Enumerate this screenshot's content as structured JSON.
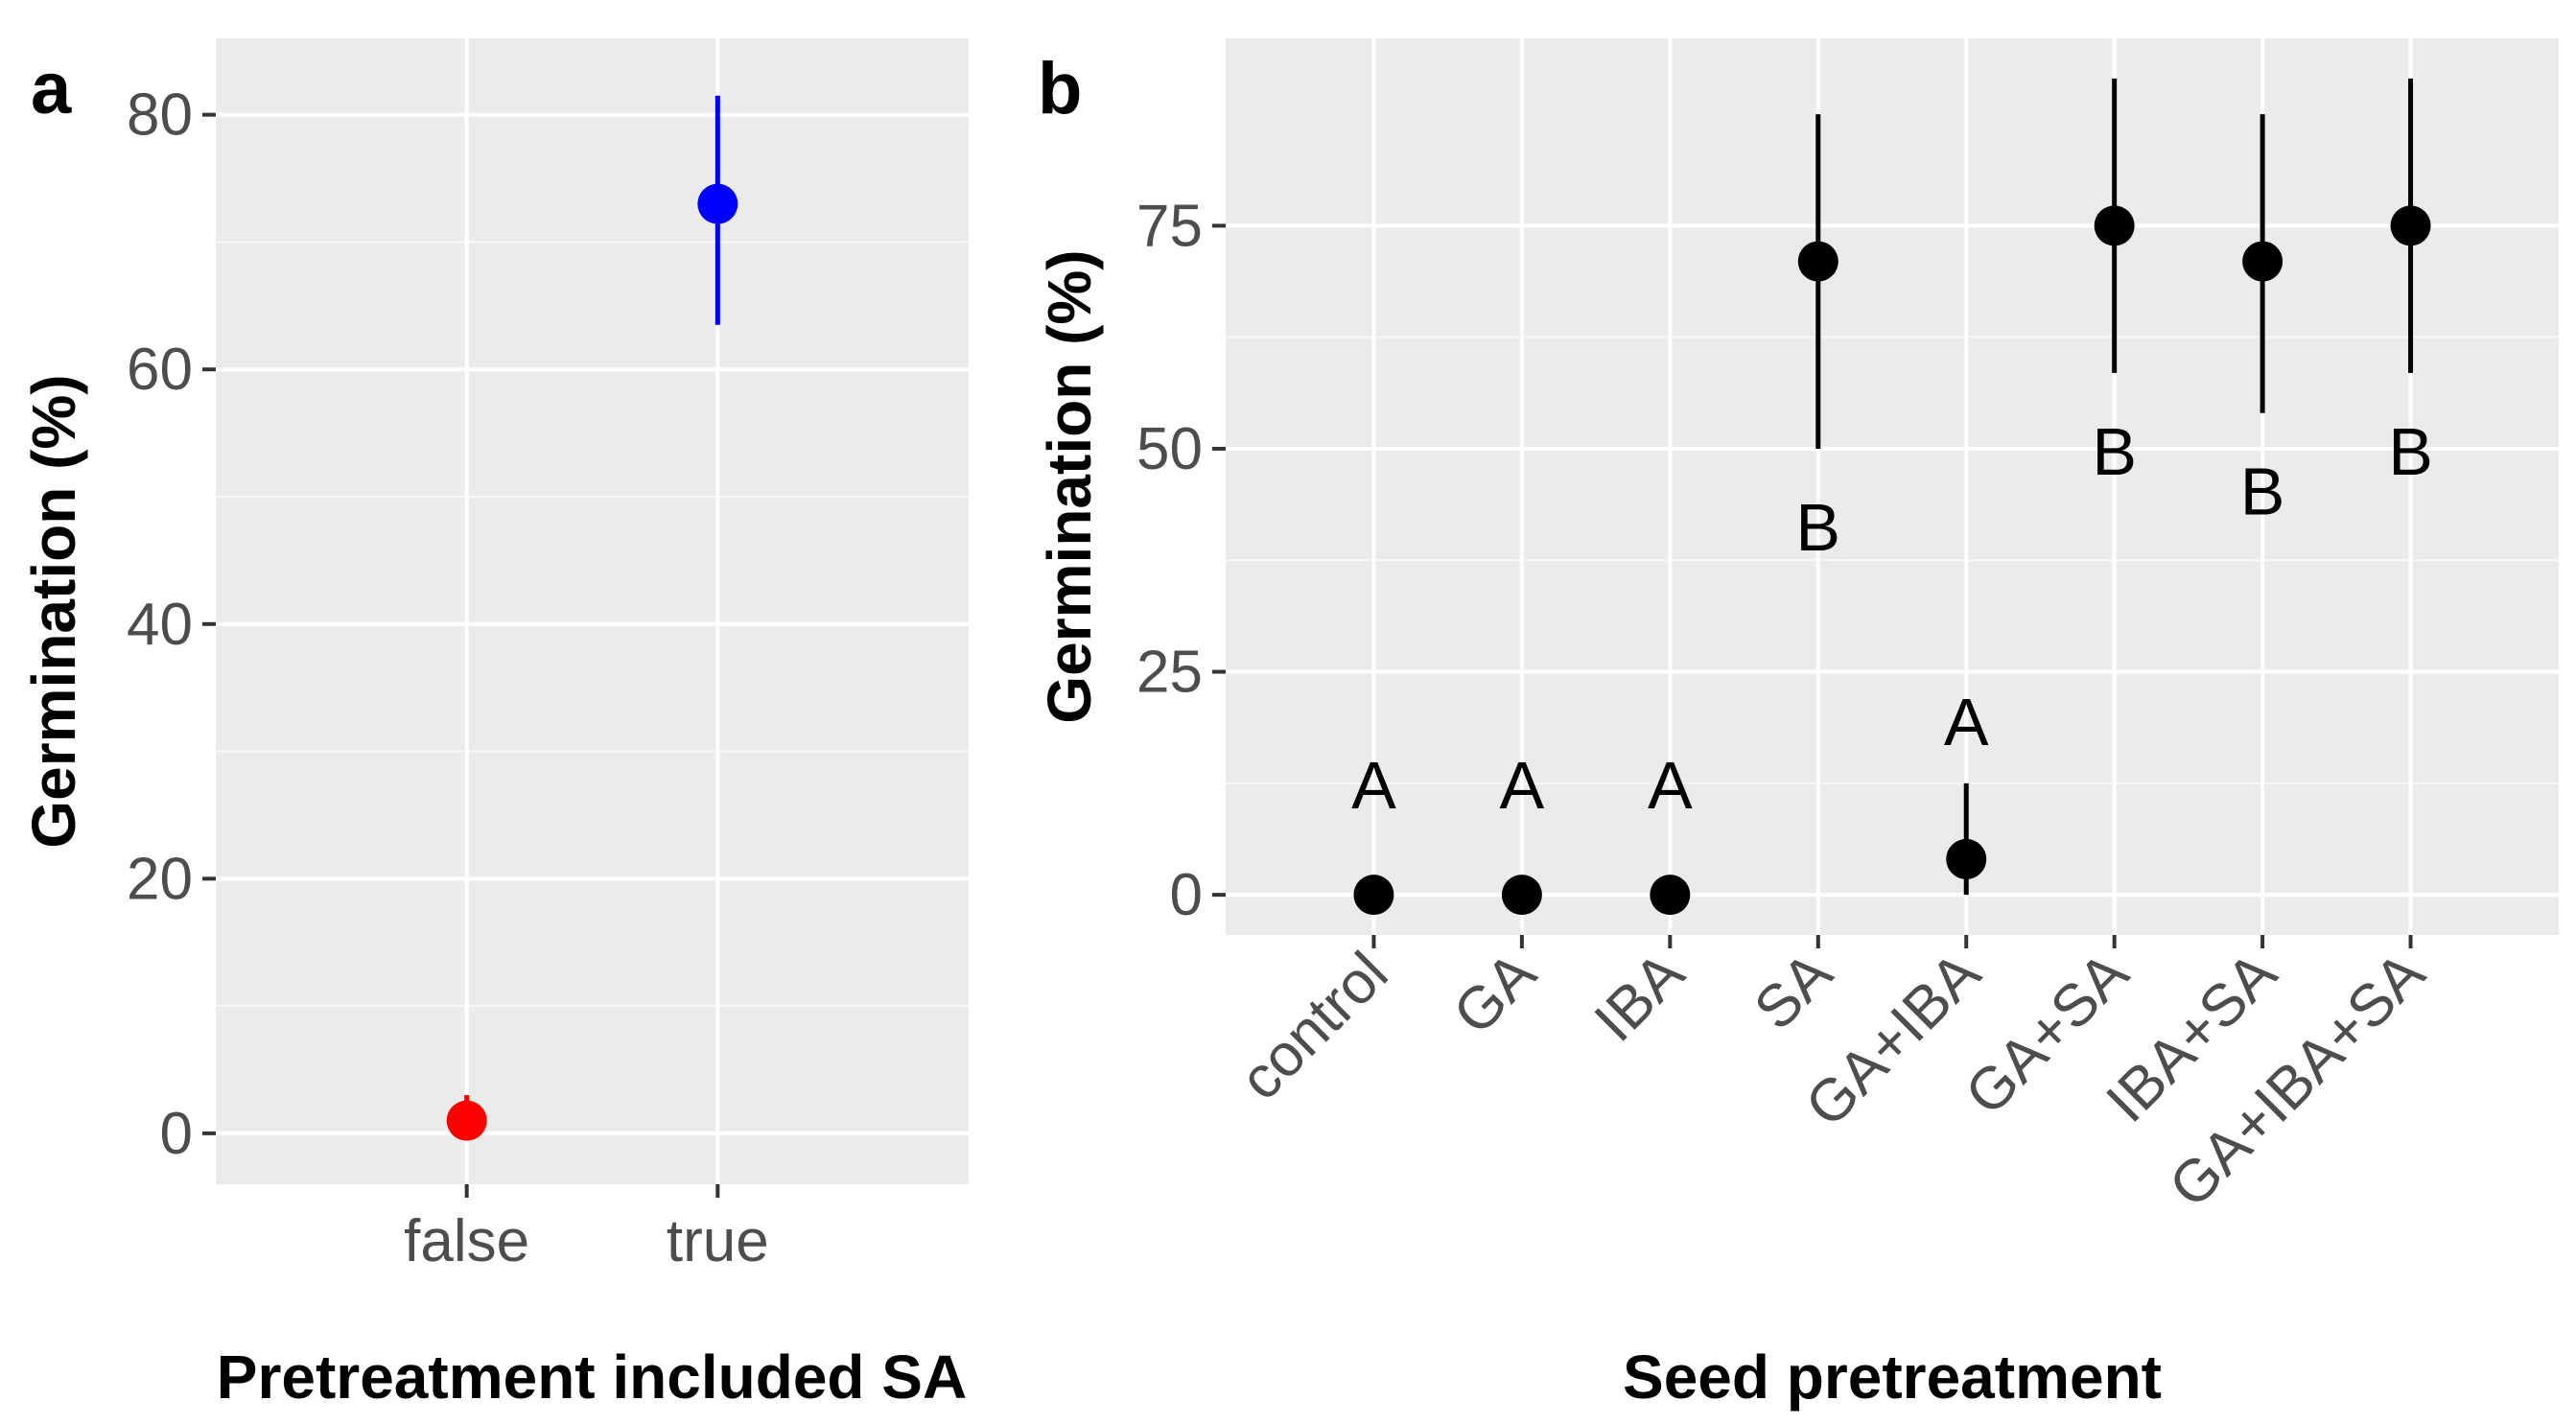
{
  "colors": {
    "panel_bg": "#ebebeb",
    "grid_major": "#ffffff",
    "grid_minor": "#f7f7f7",
    "tick_text": "#4d4d4d",
    "false_point": "#ff0000",
    "true_point": "#0000ff",
    "panel_b_point": "#000000"
  },
  "chart_data": [
    {
      "panel_label": "a",
      "type": "scatter",
      "subtype": "point-with-error-bars",
      "xlabel": "Pretreatment included SA",
      "ylabel": "Germination (%)",
      "ylim": [
        -4,
        86
      ],
      "yticks": [
        0,
        20,
        40,
        60,
        80
      ],
      "ytick_labels": [
        "0",
        "20",
        "40",
        "60",
        "80"
      ],
      "categories": [
        "false",
        "true"
      ],
      "points": [
        {
          "category": "false",
          "y": 1,
          "lower": 0,
          "upper": 3,
          "color": "#ff0000"
        },
        {
          "category": "true",
          "y": 73,
          "lower": 63.5,
          "upper": 81.5,
          "color": "#0000ff"
        }
      ],
      "grid": true
    },
    {
      "panel_label": "b",
      "type": "scatter",
      "subtype": "point-with-error-bars",
      "xlabel": "Seed pretreatment",
      "ylabel": "Germination (%)",
      "ylim": [
        -4.5,
        96
      ],
      "yticks": [
        0,
        25,
        50,
        75
      ],
      "ytick_labels": [
        "0",
        "25",
        "50",
        "75"
      ],
      "categories": [
        "control",
        "GA",
        "IBA",
        "SA",
        "GA+IBA",
        "GA+SA",
        "IBA+SA",
        "GA+IBA+SA"
      ],
      "points": [
        {
          "category": "control",
          "y": 0,
          "lower": 0,
          "upper": 0,
          "letter": "A"
        },
        {
          "category": "GA",
          "y": 0,
          "lower": 0,
          "upper": 0,
          "letter": "A"
        },
        {
          "category": "IBA",
          "y": 0,
          "lower": 0,
          "upper": 0,
          "letter": "A"
        },
        {
          "category": "SA",
          "y": 71,
          "lower": 50,
          "upper": 87.5,
          "letter": "B"
        },
        {
          "category": "GA+IBA",
          "y": 4,
          "lower": 0,
          "upper": 12.5,
          "letter": "A"
        },
        {
          "category": "GA+SA",
          "y": 75,
          "lower": 58.5,
          "upper": 91.5,
          "letter": "B"
        },
        {
          "category": "IBA+SA",
          "y": 71,
          "lower": 54,
          "upper": 87.5,
          "letter": "B"
        },
        {
          "category": "GA+IBA+SA",
          "y": 75,
          "lower": 58.5,
          "upper": 91.5,
          "letter": "B"
        }
      ],
      "grid": true
    }
  ]
}
